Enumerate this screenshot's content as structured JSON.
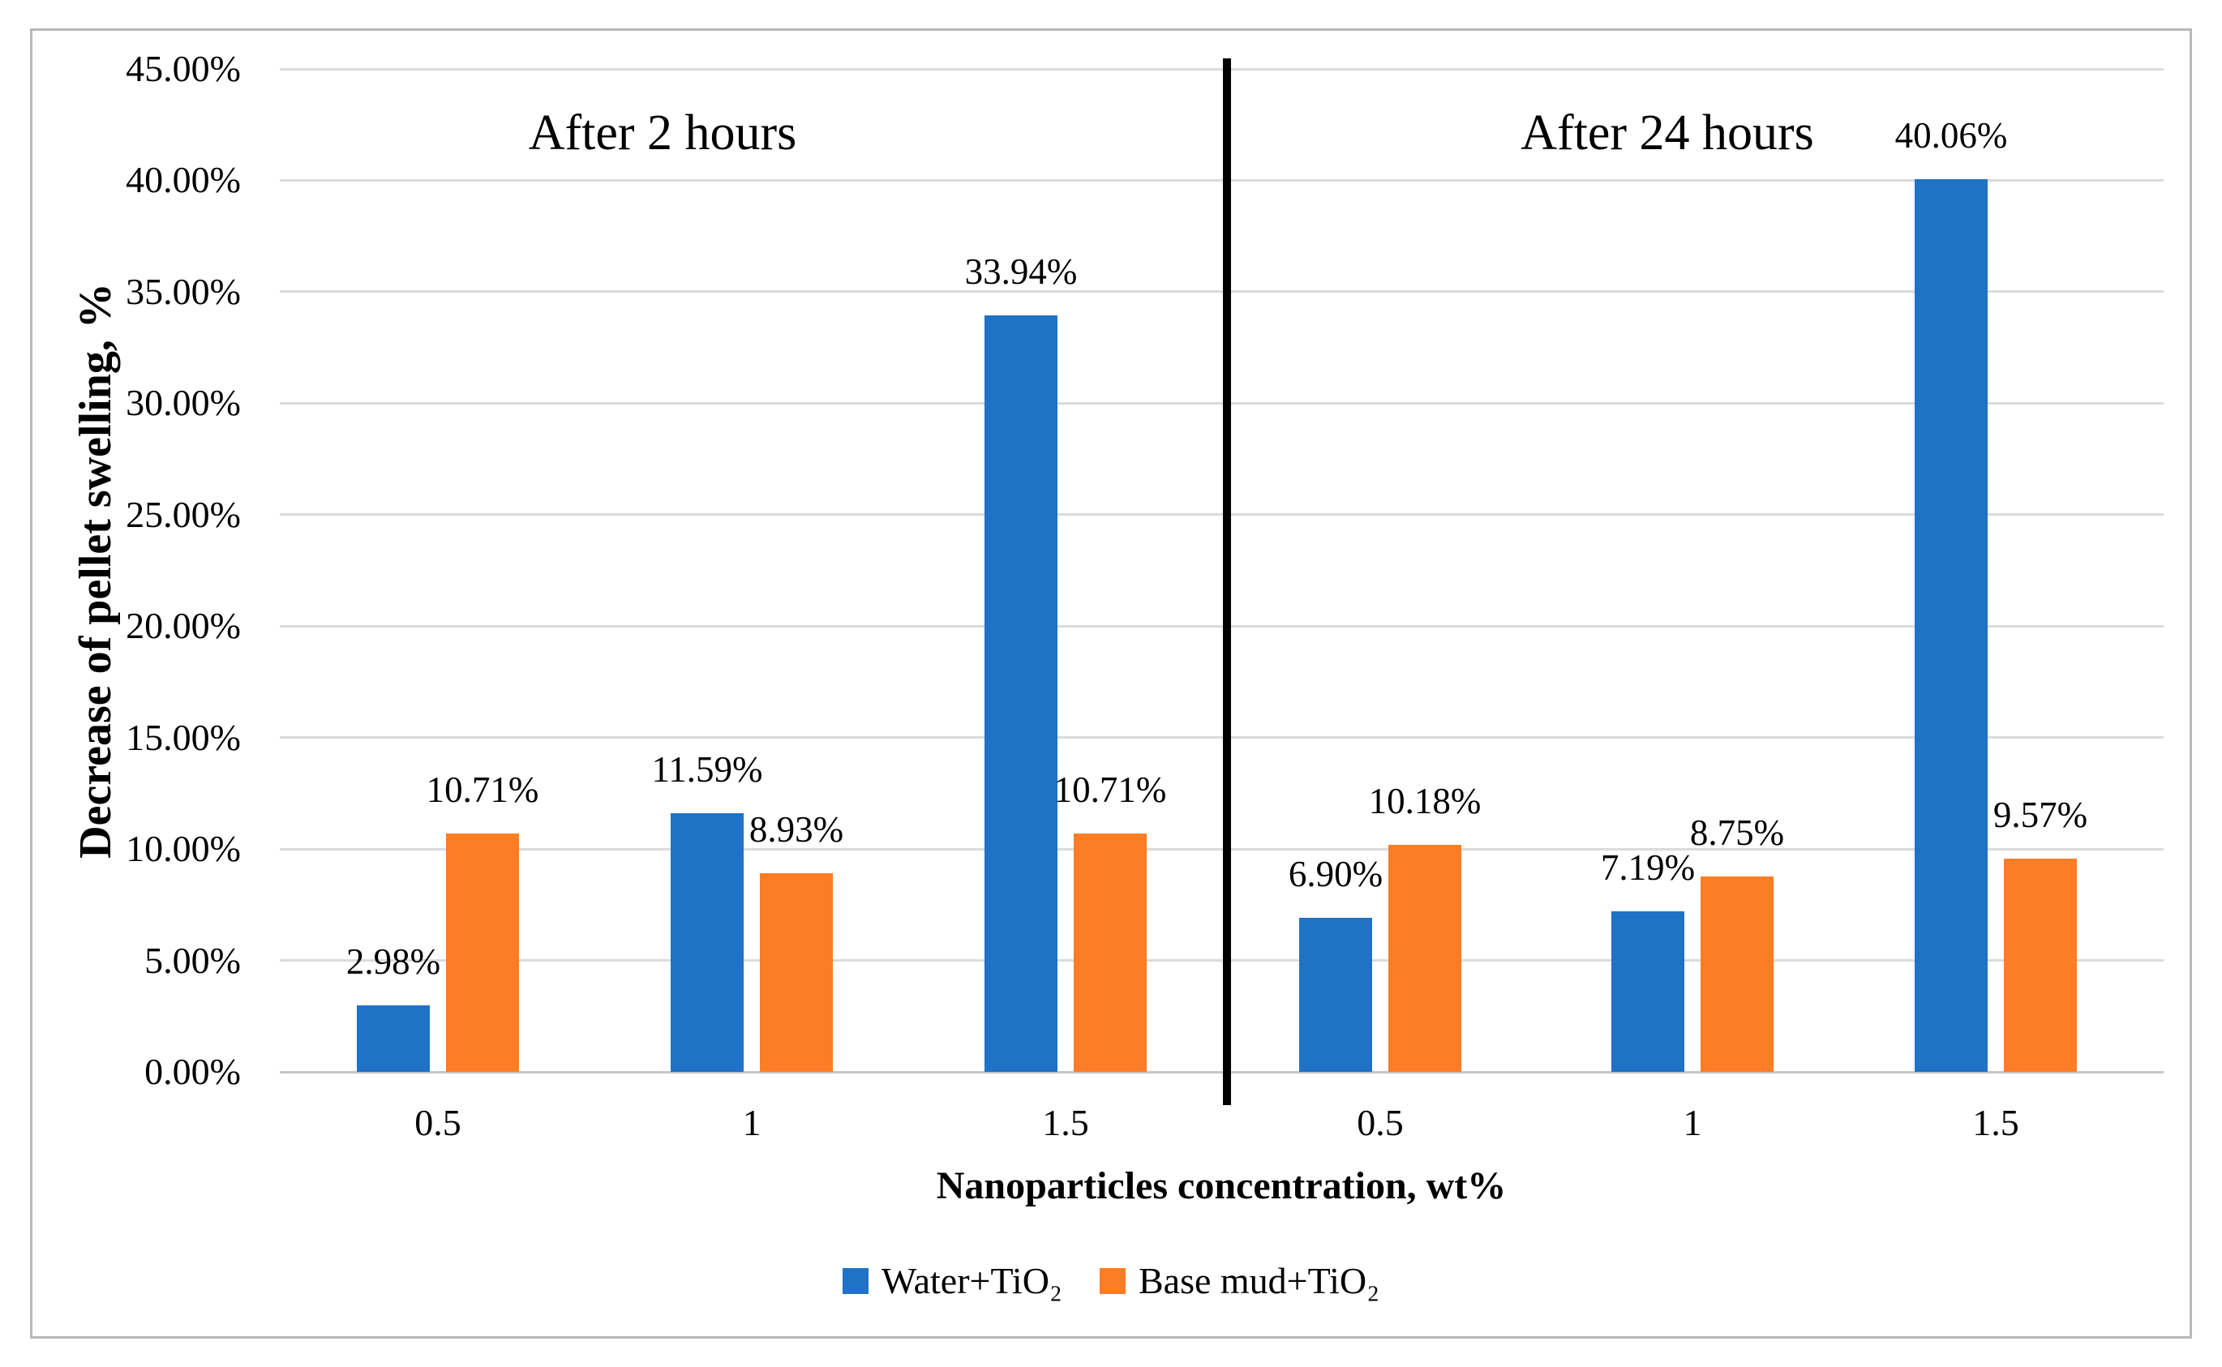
{
  "figure": {
    "background": "#ffffff",
    "border_color": "#b9b9b9"
  },
  "chart_data": {
    "type": "bar",
    "title": "",
    "ylabel": "Decrease of pellet swelling, %",
    "xlabel": "Nanoparticles concentration, wt%",
    "ylim": [
      0,
      45
    ],
    "ytick_step": 5,
    "ytick_labels": [
      "0.00%",
      "5.00%",
      "10.00%",
      "15.00%",
      "20.00%",
      "25.00%",
      "30.00%",
      "35.00%",
      "40.00%",
      "45.00%"
    ],
    "grid": true,
    "legend_position": "bottom",
    "divider_color": "#000000",
    "sections": [
      {
        "title": "After 2 hours",
        "categories": [
          "0.5",
          "1",
          "1.5"
        ],
        "series": [
          {
            "name": "Water+TiO₂",
            "values": [
              2.98,
              11.59,
              33.94
            ],
            "labels": [
              "2.98%",
              "11.59%",
              "33.94%"
            ]
          },
          {
            "name": "Base mud+TiO₂",
            "values": [
              10.71,
              8.93,
              10.71
            ],
            "labels": [
              "10.71%",
              "8.93%",
              "10.71%"
            ]
          }
        ]
      },
      {
        "title": "After 24 hours",
        "categories": [
          "0.5",
          "1",
          "1.5"
        ],
        "series": [
          {
            "name": "Water+TiO₂",
            "values": [
              6.9,
              7.19,
              40.06
            ],
            "labels": [
              "6.90%",
              "7.19%",
              "40.06%"
            ]
          },
          {
            "name": "Base mud+TiO₂",
            "values": [
              10.18,
              8.75,
              9.57
            ],
            "labels": [
              "10.18%",
              "8.75%",
              "9.57%"
            ]
          }
        ]
      }
    ],
    "legend": [
      {
        "label": "Water+TiO₂",
        "color": "#1F72C5"
      },
      {
        "label": "Base mud+TiO₂",
        "color": "#FB7D26"
      }
    ],
    "colors": {
      "water": "#1F72C5",
      "base_mud": "#FB7D26",
      "gridline": "#dbdbdb",
      "axis_line": "#c6c6c6",
      "text": "#000000"
    }
  }
}
